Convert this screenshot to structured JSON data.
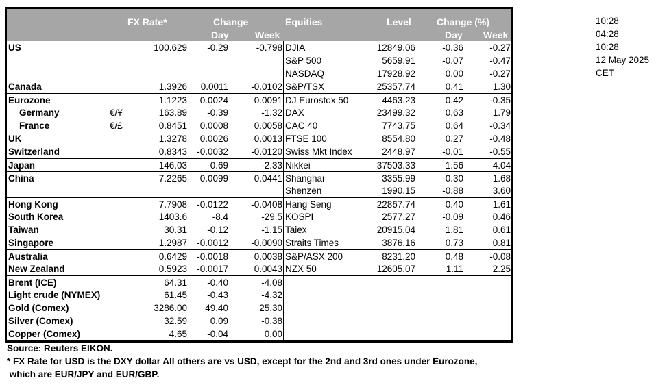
{
  "header": {
    "fx_rate": "FX Rate*",
    "change": "Change",
    "day": "Day",
    "week": "Week",
    "equities": "Equities",
    "level": "Level",
    "change_pct": "Change (%)",
    "eq_day": "Day",
    "eq_week": "Week"
  },
  "rows": [
    {
      "region": "US",
      "symbol": "",
      "fx": "100.629",
      "day": "-0.29",
      "week": "-0.798",
      "eq_name": "DJIA",
      "eq_level": "12849.06",
      "eq_day": "-0.36",
      "eq_week": "-0.27"
    },
    {
      "region": "",
      "symbol": "",
      "fx": "",
      "day": "",
      "week": "",
      "eq_name": "S&P 500",
      "eq_level": "5659.91",
      "eq_day": "-0.07",
      "eq_week": "-0.47"
    },
    {
      "region": "",
      "symbol": "",
      "fx": "",
      "day": "",
      "week": "",
      "eq_name": "NASDAQ",
      "eq_level": "17928.92",
      "eq_day": "0.00",
      "eq_week": "-0.27"
    },
    {
      "region": "Canada",
      "symbol": "",
      "fx": "1.3926",
      "day": "0.0011",
      "week": "-0.0102",
      "eq_name": "S&P/TSX",
      "eq_level": "25357.74",
      "eq_day": "0.41",
      "eq_week": "1.30"
    },
    {
      "region": "Eurozone",
      "symbol": "",
      "fx": "1.1223",
      "day": "0.0024",
      "week": "0.0091",
      "eq_name": "DJ Eurostox 50",
      "eq_level": "4463.23",
      "eq_day": "0.42",
      "eq_week": "-0.35"
    },
    {
      "region": "Germany",
      "symbol": "€/¥",
      "fx": "163.89",
      "day": "-0.39",
      "week": "-1.32",
      "eq_name": "DAX",
      "eq_level": "23499.32",
      "eq_day": "0.63",
      "eq_week": "1.79"
    },
    {
      "region": "France",
      "symbol": "€/£",
      "fx": "0.8451",
      "day": "0.0008",
      "week": "0.0058",
      "eq_name": "CAC 40",
      "eq_level": "7743.75",
      "eq_day": "0.64",
      "eq_week": "-0.34"
    },
    {
      "region": "UK",
      "symbol": "",
      "fx": "1.3278",
      "day": "0.0026",
      "week": "0.0013",
      "eq_name": "FTSE 100",
      "eq_level": "8554.80",
      "eq_day": "0.27",
      "eq_week": "-0.48"
    },
    {
      "region": "Switzerland",
      "symbol": "",
      "fx": "0.8343",
      "day": "-0.0032",
      "week": "-0.0120",
      "eq_name": "Swiss Mkt Index",
      "eq_level": "2448.97",
      "eq_day": "-0.01",
      "eq_week": "-0.55"
    },
    {
      "region": "Japan",
      "symbol": "",
      "fx": "146.03",
      "day": "-0.69",
      "week": "-2.33",
      "eq_name": "Nikkei",
      "eq_level": "37503.33",
      "eq_day": "1.56",
      "eq_week": "4.04"
    },
    {
      "region": "China",
      "symbol": "",
      "fx": "7.2265",
      "day": "0.0099",
      "week": "0.0441",
      "eq_name": "Shanghai",
      "eq_level": "3355.99",
      "eq_day": "-0.30",
      "eq_week": "1.68"
    },
    {
      "region": "",
      "symbol": "",
      "fx": "",
      "day": "",
      "week": "",
      "eq_name": "Shenzen",
      "eq_level": "1990.15",
      "eq_day": "-0.88",
      "eq_week": "3.60"
    },
    {
      "region": "Hong Kong",
      "symbol": "",
      "fx": "7.7908",
      "day": "-0.0122",
      "week": "-0.0408",
      "eq_name": "Hang Seng",
      "eq_level": "22867.74",
      "eq_day": "0.40",
      "eq_week": "1.61"
    },
    {
      "region": "South Korea",
      "symbol": "",
      "fx": "1403.6",
      "day": "-8.4",
      "week": "-29.5",
      "eq_name": "KOSPI",
      "eq_level": "2577.27",
      "eq_day": "-0.09",
      "eq_week": "0.46"
    },
    {
      "region": "Taiwan",
      "symbol": "",
      "fx": "30.31",
      "day": "-0.12",
      "week": "-1.15",
      "eq_name": "Taiex",
      "eq_level": "20915.04",
      "eq_day": "1.81",
      "eq_week": "0.61"
    },
    {
      "region": "Singapore",
      "symbol": "",
      "fx": "1.2987",
      "day": "-0.0012",
      "week": "-0.0090",
      "eq_name": "Straits Times",
      "eq_level": "3876.16",
      "eq_day": "0.73",
      "eq_week": "0.81"
    },
    {
      "region": "Australia",
      "symbol": "",
      "fx": "0.6429",
      "day": "-0.0018",
      "week": "0.0038",
      "eq_name": "S&P/ASX  200",
      "eq_level": "8231.20",
      "eq_day": "0.48",
      "eq_week": "-0.08"
    },
    {
      "region": "New Zealand",
      "symbol": "",
      "fx": "0.5923",
      "day": "-0.0017",
      "week": "0.0043",
      "eq_name": "NZX 50",
      "eq_level": "12605.07",
      "eq_day": "1.11",
      "eq_week": "2.25"
    },
    {
      "region": "Brent (ICE)",
      "symbol": "",
      "fx": "64.31",
      "day": "-0.40",
      "week": "-4.08",
      "eq_name": "",
      "eq_level": "",
      "eq_day": "",
      "eq_week": ""
    },
    {
      "region": "Light crude (NYMEX)",
      "symbol": "",
      "fx": "61.45",
      "day": "-0.43",
      "week": "-4.32",
      "eq_name": "",
      "eq_level": "",
      "eq_day": "",
      "eq_week": ""
    },
    {
      "region": "Gold (Comex)",
      "symbol": "",
      "fx": "3286.00",
      "day": "49.40",
      "week": "25.30",
      "eq_name": "",
      "eq_level": "",
      "eq_day": "",
      "eq_week": ""
    },
    {
      "region": "Silver (Comex)",
      "symbol": "",
      "fx": "32.59",
      "day": "0.09",
      "week": "-0.38",
      "eq_name": "",
      "eq_level": "",
      "eq_day": "",
      "eq_week": ""
    },
    {
      "region": "Copper (Comex)",
      "symbol": "",
      "fx": "4.65",
      "day": "-0.04",
      "week": "0.00",
      "eq_name": "",
      "eq_level": "",
      "eq_day": "",
      "eq_week": ""
    }
  ],
  "side": {
    "time1": "10:28",
    "time2": "04:28",
    "time3": "10:28",
    "date": "12 May 2025",
    "timezone": "CET"
  },
  "footer": {
    "source": "Source:  Reuters EIKON.",
    "note1": "* FX Rate for USD is the DXY dollar  All others are vs USD, except for the 2nd and 3rd ones under Eurozone,",
    "note2": " which are EUR/JPY and EUR/GBP."
  }
}
